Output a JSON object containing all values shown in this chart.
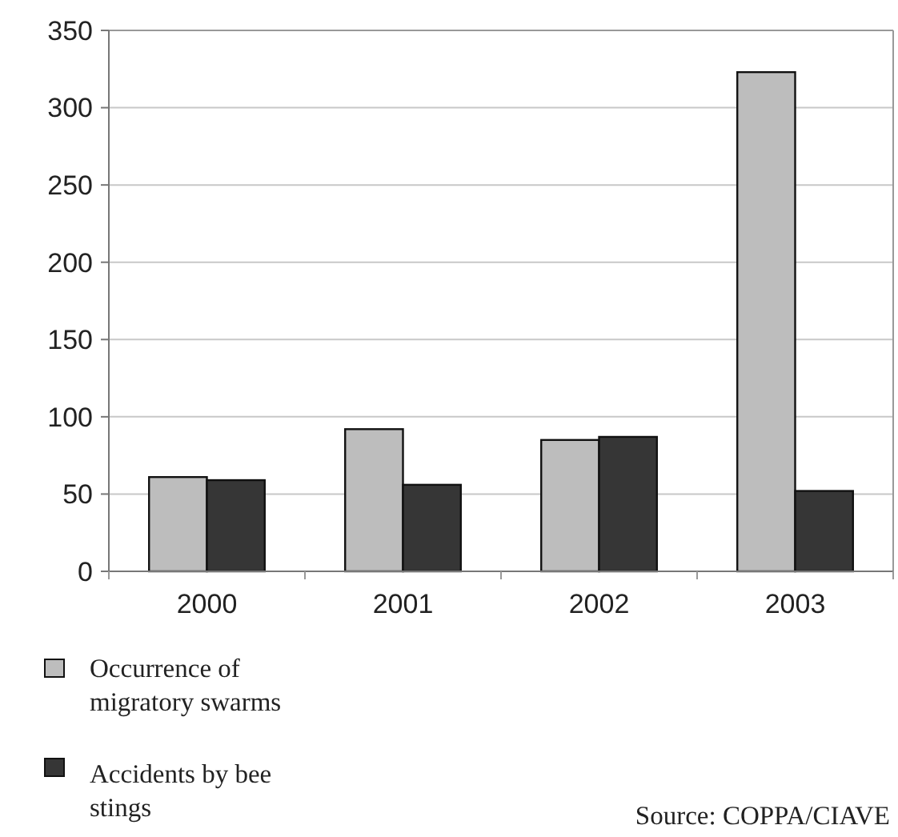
{
  "chart_data": {
    "type": "bar",
    "categories": [
      "2000",
      "2001",
      "2002",
      "2003"
    ],
    "series": [
      {
        "name": "Occurrence of migratory swarms",
        "color": "#bdbdbd",
        "values": [
          61,
          92,
          85,
          323
        ]
      },
      {
        "name": "Accidents by bee stings",
        "color": "#363636",
        "values": [
          59,
          56,
          87,
          52
        ]
      }
    ],
    "ylim": [
      0,
      350
    ],
    "yticks": [
      0,
      50,
      100,
      150,
      200,
      250,
      300,
      350
    ],
    "grid": "y",
    "legend": "bottom left",
    "annotations": [
      "Source: COPPA/CIAVE"
    ]
  }
}
